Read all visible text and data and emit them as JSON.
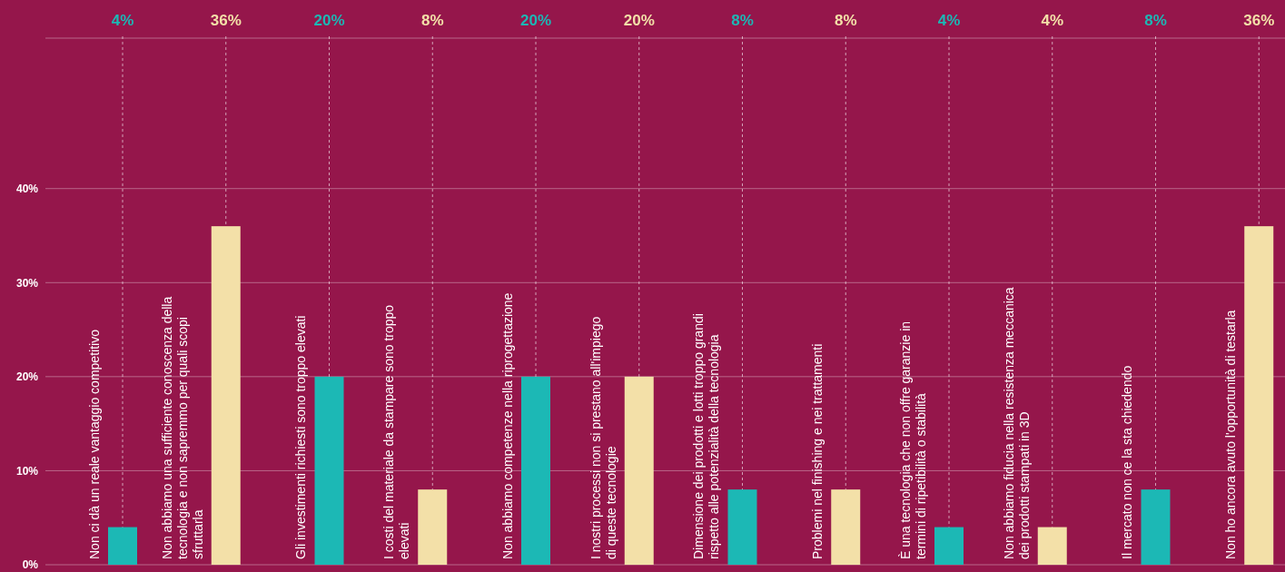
{
  "chart_data": {
    "type": "bar",
    "categories": [
      "Non ci dà un reale vantaggio competitivo",
      "Non abbiamo una sufficiente conoscenza della tecnologia e non sapremmo per quali scopi sfruttarla",
      "Gli investimenti richiesti sono troppo elevati",
      "I costi del materiale da stampare sono troppo elevati",
      "Non abbiamo competenze nella riprogettazione",
      "I nostri processi non si prestano all'impiego di queste tecnologie",
      "Dimensione dei prodotti e lotti troppo grandi rispetto alle potenzialità della tecnologia",
      "Problemi nel finishing e nei trattamenti",
      "È una tecnologia che non offre garanzie in termini di ripetibilità o stabilità",
      "Non abbiamo fiducia nella resistenza meccanica dei prodotti stampati in 3D",
      "Il mercato non ce la sta chiedendo",
      "Non ho ancora avuto l'opportunità di testarla"
    ],
    "values": [
      4,
      36,
      20,
      8,
      20,
      20,
      8,
      8,
      4,
      4,
      8,
      36
    ],
    "value_labels": [
      "4%",
      "36%",
      "20%",
      "8%",
      "20%",
      "20%",
      "8%",
      "8%",
      "4%",
      "4%",
      "8%",
      "36%"
    ],
    "colors": [
      "#1cb8b5",
      "#f3e0a8",
      "#1cb8b5",
      "#f3e0a8",
      "#1cb8b5",
      "#f3e0a8",
      "#1cb8b5",
      "#f3e0a8",
      "#1cb8b5",
      "#f3e0a8",
      "#1cb8b5",
      "#f3e0a8"
    ],
    "ylim": [
      0,
      56
    ],
    "yticks": [
      {
        "value": 0,
        "label": "0%"
      },
      {
        "value": 10,
        "label": "10%"
      },
      {
        "value": 20,
        "label": "20%"
      },
      {
        "value": 30,
        "label": "30%"
      },
      {
        "value": 40,
        "label": "40%"
      }
    ],
    "grid": "y"
  }
}
